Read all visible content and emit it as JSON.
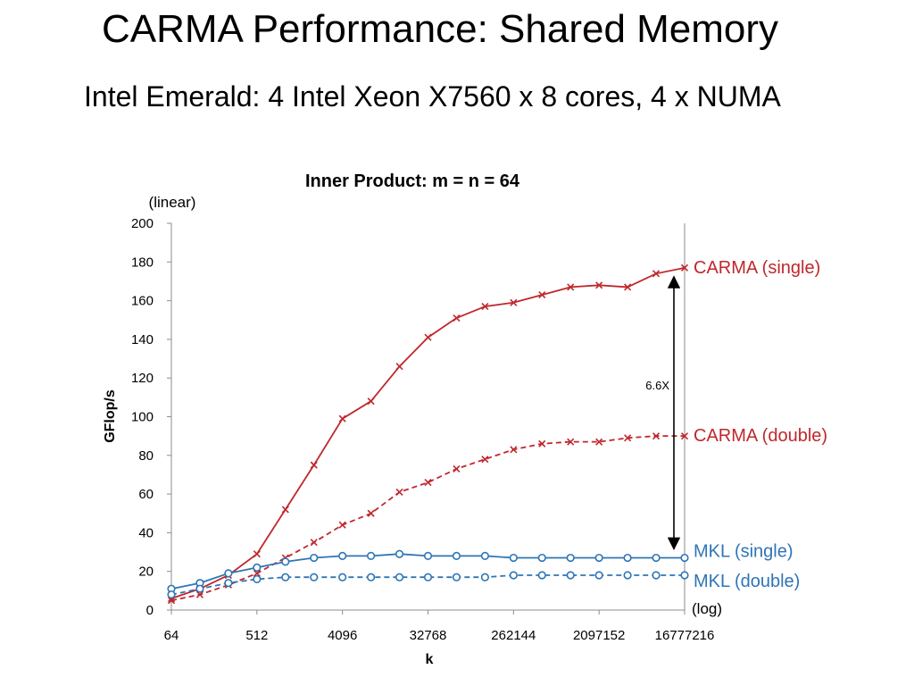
{
  "slide": {
    "title": "CARMA Performance: Shared Memory",
    "subtitle": "Intel Emerald: 4 Intel Xeon X7560 x 8 cores, 4 x NUMA"
  },
  "chart_data": {
    "type": "line",
    "title": "Inner Product: m = n = 64",
    "xlabel": "k",
    "ylabel": "GFlop/s",
    "y_scale_note": "(linear)",
    "x_scale_note": "(log)",
    "x_scale": "log2",
    "grid": false,
    "ylim": [
      0,
      200
    ],
    "yticks": [
      0,
      20,
      40,
      60,
      80,
      100,
      120,
      140,
      160,
      180,
      200
    ],
    "x": [
      64,
      128,
      256,
      512,
      1024,
      2048,
      4096,
      8192,
      16384,
      32768,
      65536,
      131072,
      262144,
      524288,
      1048576,
      2097152,
      4194304,
      8388608,
      16777216
    ],
    "xtick_labels": [
      "64",
      "512",
      "4096",
      "32768",
      "262144",
      "2097152",
      "16777216"
    ],
    "series": [
      {
        "name": "CARMA (single)",
        "color": "#c0272d",
        "dash": false,
        "marker": "x",
        "values": [
          6,
          11,
          18,
          29,
          52,
          75,
          99,
          108,
          126,
          141,
          151,
          157,
          159,
          163,
          167,
          168,
          167,
          174,
          177
        ]
      },
      {
        "name": "CARMA (double)",
        "color": "#c0272d",
        "dash": true,
        "marker": "x",
        "values": [
          5,
          8,
          13,
          19,
          27,
          35,
          44,
          50,
          61,
          66,
          73,
          78,
          83,
          86,
          87,
          87,
          89,
          90,
          90
        ]
      },
      {
        "name": "MKL (single)",
        "color": "#2e75b6",
        "dash": false,
        "marker": "o",
        "values": [
          11,
          14,
          19,
          22,
          25,
          27,
          28,
          28,
          29,
          28,
          28,
          28,
          27,
          27,
          27,
          27,
          27,
          27,
          27
        ]
      },
      {
        "name": "MKL (double)",
        "color": "#2e75b6",
        "dash": true,
        "marker": "o",
        "values": [
          8,
          11,
          14,
          16,
          17,
          17,
          17,
          17,
          17,
          17,
          17,
          17,
          18,
          18,
          18,
          18,
          18,
          18,
          18
        ]
      }
    ],
    "annotation": {
      "text": "6.6X",
      "from_series": "MKL (single)",
      "to_series": "CARMA (single)"
    }
  }
}
